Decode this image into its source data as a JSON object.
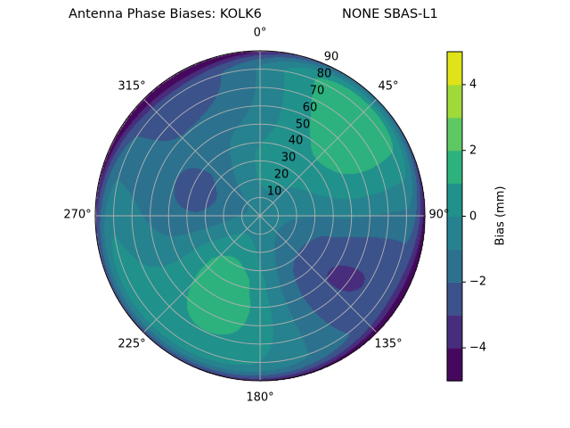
{
  "chart_data": {
    "type": "contour",
    "projection": "polar",
    "title_left": "Antenna Phase Biases: KOLK6",
    "title_right": "NONE SBAS-L1",
    "theta_direction": "clockwise",
    "theta_zero": "north",
    "theta_ticks": [
      "0°",
      "45°",
      "90°",
      "135°",
      "180°",
      "225°",
      "270°",
      "315°"
    ],
    "r_ticks": [
      "10",
      "20",
      "30",
      "40",
      "50",
      "60",
      "70",
      "80",
      "90"
    ],
    "r_range": [
      0,
      90
    ],
    "grid": true,
    "colormap": "viridis",
    "levels": [
      -5,
      -4,
      -3,
      -2,
      -1,
      0,
      1,
      2,
      3,
      4,
      5
    ],
    "level_colors": [
      "#46085c",
      "#472d7b",
      "#3b528b",
      "#2c728e",
      "#26828e",
      "#21918c",
      "#2db27d",
      "#5ec962",
      "#a0da39",
      "#dfe318"
    ],
    "colorbar": {
      "label": "Bias (mm)",
      "ticks": [
        "4",
        "2",
        "0",
        "−2",
        "−4"
      ],
      "tick_values": [
        4,
        2,
        0,
        -2,
        -4
      ],
      "range": [
        -5,
        5
      ]
    }
  }
}
